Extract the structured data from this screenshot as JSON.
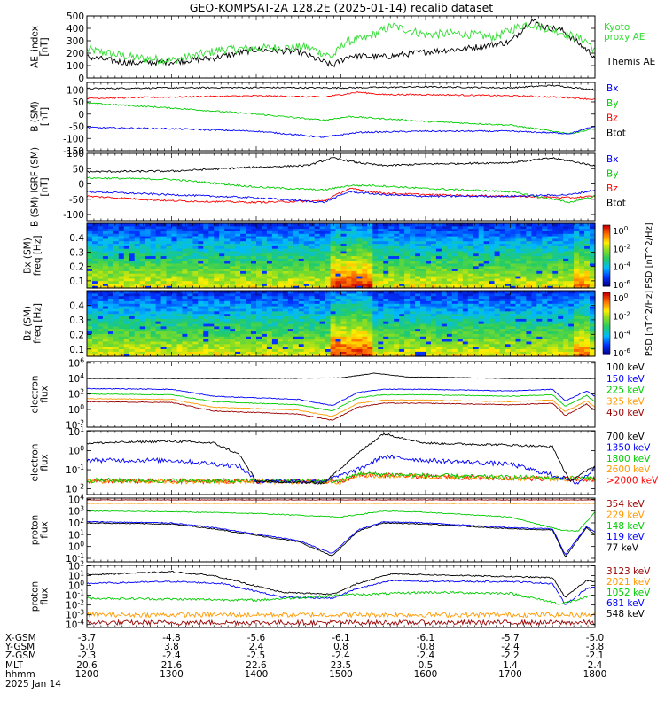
{
  "title": "GEO-KOMPSAT-2A 128.2E (2025-01-14) recalib dataset",
  "colors": {
    "black": "#000000",
    "blue": "#0000ff",
    "green": "#00cc00",
    "red": "#ff0000",
    "orange": "#ff9900",
    "darkred": "#990000",
    "kyoto": "#33dd33"
  },
  "chart_data": [
    {
      "type": "line",
      "id": "ae",
      "ylabel": "AE_index\n[nT]",
      "ylim": [
        0,
        500
      ],
      "log": false,
      "yticks": [
        0,
        100,
        200,
        300,
        400,
        500
      ],
      "ytick_labels": [
        "0",
        "100",
        "200",
        "300",
        "400",
        "500"
      ],
      "series": [
        {
          "name": "Kyoto\nproxy AE",
          "color": "#33dd33",
          "style": "ae_kyoto"
        },
        {
          "name": "Themis AE",
          "color": "#000000",
          "style": "ae_themis"
        }
      ]
    },
    {
      "type": "line",
      "id": "bsm",
      "ylabel": "B (SM)\n[nT]",
      "ylim": [
        -150,
        130
      ],
      "log": false,
      "yticks": [
        -150,
        -100,
        -50,
        0,
        50,
        100
      ],
      "ytick_labels": [
        "-150",
        "-100",
        "-50",
        "0",
        "50",
        "100"
      ],
      "series": [
        {
          "name": "Bx",
          "color": "#0000ff",
          "style": "b_bx"
        },
        {
          "name": "By",
          "color": "#00cc00",
          "style": "b_by"
        },
        {
          "name": "Bz",
          "color": "#ff0000",
          "style": "b_bz"
        },
        {
          "name": "Btot",
          "color": "#000000",
          "style": "b_btot"
        }
      ]
    },
    {
      "type": "line",
      "id": "bigrf",
      "ylabel": "B (SM)-IGRF (SM)\n[nT]",
      "ylim": [
        -120,
        100
      ],
      "log": false,
      "yticks": [
        -100,
        -50,
        0,
        50,
        100
      ],
      "ytick_labels": [
        "-100",
        "-50",
        "0",
        "50",
        "100"
      ],
      "series": [
        {
          "name": "Bx",
          "color": "#0000ff",
          "style": "d_bx"
        },
        {
          "name": "By",
          "color": "#00cc00",
          "style": "d_by"
        },
        {
          "name": "Bz",
          "color": "#ff0000",
          "style": "d_bz"
        },
        {
          "name": "Btot",
          "color": "#000000",
          "style": "d_btot"
        }
      ]
    },
    {
      "type": "heatmap",
      "id": "bxspec",
      "ylabel": "Bx (SM)\nfreq [Hz]",
      "ylim": [
        0.05,
        0.5
      ],
      "yticks": [
        0.1,
        0.2,
        0.3,
        0.4
      ],
      "ytick_labels": [
        "0.1",
        "0.2",
        "0.3",
        "0.4"
      ],
      "colorbar_label": "PSD [nT^2/Hz]",
      "colorbar_ticks": [
        "10^0",
        "10^-2",
        "10^-4",
        "10^-6"
      ]
    },
    {
      "type": "heatmap",
      "id": "bzspec",
      "ylabel": "Bz (SM)\nfreq [Hz]",
      "ylim": [
        0.05,
        0.5
      ],
      "yticks": [
        0.1,
        0.2,
        0.3,
        0.4
      ],
      "ytick_labels": [
        "0.1",
        "0.2",
        "0.3",
        "0.4"
      ],
      "colorbar_label": "PSD [nT^2/Hz]",
      "colorbar_ticks": [
        "10^0",
        "10^-2",
        "10^-4",
        "10^-6"
      ]
    },
    {
      "type": "line",
      "id": "elo",
      "ylabel": "electron\nflux",
      "ylim": [
        -2.3,
        6.2
      ],
      "log": true,
      "yticks": [
        -2,
        0,
        2,
        4,
        6
      ],
      "ytick_labels": [
        "10^-2",
        "10^0",
        "10^2",
        "10^4",
        "10^6"
      ],
      "series": [
        {
          "name": "100 keV",
          "color": "#000000",
          "style": "e1"
        },
        {
          "name": "150 keV",
          "color": "#0000ff",
          "style": "e2"
        },
        {
          "name": "225 keV",
          "color": "#00cc00",
          "style": "e3"
        },
        {
          "name": "325 keV",
          "color": "#ff9900",
          "style": "e4"
        },
        {
          "name": "450 keV",
          "color": "#990000",
          "style": "e5"
        }
      ]
    },
    {
      "type": "line",
      "id": "ehi",
      "ylabel": "electron\nflux",
      "ylim": [
        -2.3,
        1.05
      ],
      "log": true,
      "yticks": [
        -2,
        -1,
        0,
        1
      ],
      "ytick_labels": [
        "10^-2",
        "10^-1",
        "10^0",
        "10^1"
      ],
      "series": [
        {
          "name": "700 keV",
          "color": "#000000",
          "style": "h1"
        },
        {
          "name": "1350 keV",
          "color": "#0000ff",
          "style": "h2"
        },
        {
          "name": "1800 keV",
          "color": "#00cc00",
          "style": "h3"
        },
        {
          "name": "2600 keV",
          "color": "#ff9900",
          "style": "h4"
        },
        {
          "name": ">2000 keV",
          "color": "#ff0000",
          "style": "h5"
        }
      ]
    },
    {
      "type": "line",
      "id": "plo",
      "ylabel": "proton\nflux",
      "ylim": [
        -1.3,
        4.1
      ],
      "log": true,
      "yticks": [
        -1,
        0,
        1,
        2,
        3,
        4
      ],
      "ytick_labels": [
        "10^-1",
        "10^0",
        "10^1",
        "10^2",
        "10^3",
        "10^4"
      ],
      "series": [
        {
          "name": "354 keV",
          "color": "#990000",
          "style": "p1"
        },
        {
          "name": "229 keV",
          "color": "#ff9900",
          "style": "p2"
        },
        {
          "name": "148 keV",
          "color": "#00cc00",
          "style": "p3"
        },
        {
          "name": "119 keV",
          "color": "#0000ff",
          "style": "p4"
        },
        {
          "name": "77 keV",
          "color": "#000000",
          "style": "p5"
        }
      ]
    },
    {
      "type": "line",
      "id": "phi",
      "ylabel": "proton\nflux",
      "ylim": [
        -4.3,
        2.05
      ],
      "log": true,
      "yticks": [
        -4,
        -3,
        -2,
        -1,
        0,
        1,
        2
      ],
      "ytick_labels": [
        "10^-4",
        "10^-3",
        "10^-2",
        "10^-1",
        "10^0",
        "10^1",
        "10^2"
      ],
      "series": [
        {
          "name": "3123 keV",
          "color": "#990000",
          "style": "q1"
        },
        {
          "name": "2021 keV",
          "color": "#ff9900",
          "style": "q2"
        },
        {
          "name": "1052 keV",
          "color": "#00cc00",
          "style": "q3"
        },
        {
          "name": "681 keV",
          "color": "#0000ff",
          "style": "q4"
        },
        {
          "name": "548 keV",
          "color": "#000000",
          "style": "q5"
        }
      ]
    }
  ],
  "x_axis": {
    "xlim_hours": [
      12.0,
      18.0
    ],
    "tick_hours": [
      12,
      13,
      14,
      15,
      16,
      17,
      18
    ],
    "rows": [
      {
        "label": "X-GSM",
        "values": [
          "-3.7",
          "-4.8",
          "-5.6",
          "-6.1",
          "-6.1",
          "-5.7",
          "-5.0"
        ]
      },
      {
        "label": "Y-GSM",
        "values": [
          "5.0",
          "3.8",
          "2.4",
          "0.8",
          "-0.8",
          "-2.4",
          "-3.8"
        ]
      },
      {
        "label": "Z-GSM",
        "values": [
          "-2.3",
          "-2.4",
          "-2.5",
          "-2.4",
          "-2.4",
          "-2.2",
          "-2.1"
        ]
      },
      {
        "label": "MLT",
        "values": [
          "20.6",
          "21.6",
          "22.6",
          "23.5",
          "0.5",
          "1.4",
          "2.4"
        ]
      },
      {
        "label": "hhmm",
        "values": [
          "1200",
          "1300",
          "1400",
          "1500",
          "1600",
          "1700",
          "1800"
        ]
      }
    ],
    "date": "2025 Jan 14"
  }
}
